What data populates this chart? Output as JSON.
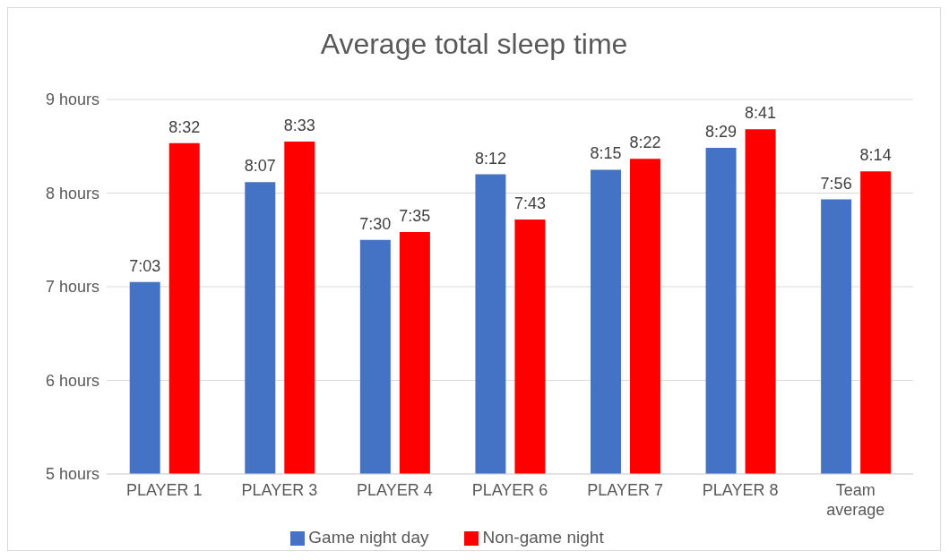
{
  "chart_data": {
    "type": "bar",
    "title": "Average total sleep time",
    "categories": [
      "PLAYER 1",
      "PLAYER 3",
      "PLAYER 4",
      "PLAYER 6",
      "PLAYER 7",
      "PLAYER 8",
      "Team average"
    ],
    "series": [
      {
        "name": "Game night day",
        "color": "#4472c4",
        "values": [
          7.05,
          8.117,
          7.5,
          8.2,
          8.25,
          8.483,
          7.933
        ],
        "value_labels": [
          "7:03",
          "8:07",
          "7:30",
          "8:12",
          "8:15",
          "8:29",
          "7:56"
        ]
      },
      {
        "name": "Non-game night",
        "color": "#ff0000",
        "values": [
          8.533,
          8.55,
          7.583,
          7.717,
          8.367,
          8.683,
          8.233
        ],
        "value_labels": [
          "8:32",
          "8:33",
          "7:35",
          "7:43",
          "8:22",
          "8:41",
          "8:14"
        ]
      }
    ],
    "ylim": [
      5,
      9
    ],
    "yticks": [
      {
        "value": 5,
        "label": "5 hours"
      },
      {
        "value": 6,
        "label": "6 hours"
      },
      {
        "value": 7,
        "label": "7 hours"
      },
      {
        "value": 8,
        "label": "8 hours"
      },
      {
        "value": 9,
        "label": "9 hours"
      }
    ],
    "grid": "y",
    "legend": "bottom"
  }
}
